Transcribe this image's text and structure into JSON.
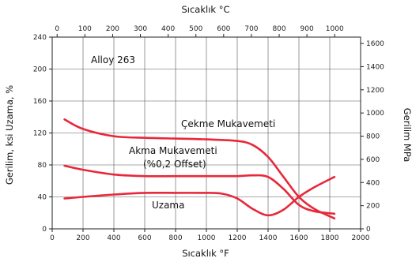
{
  "chart_data": {
    "type": "line",
    "x_axis_bottom": {
      "label": "Sıcaklık °F",
      "range": [
        0,
        2000
      ],
      "ticks": [
        0,
        200,
        400,
        600,
        800,
        1000,
        1200,
        1400,
        1600,
        1800,
        2000
      ]
    },
    "x_axis_top": {
      "label": "Sıcaklık °C",
      "ticks": [
        0,
        100,
        200,
        300,
        400,
        500,
        600,
        700,
        800,
        900,
        1000
      ]
    },
    "y_axis_left": {
      "label": "Gerilim, ksi  Uzama, %",
      "range": [
        0,
        240
      ],
      "ticks": [
        0,
        40,
        80,
        120,
        160,
        200,
        240
      ]
    },
    "y_axis_right": {
      "label": "Gerilim MPa",
      "range": [
        0,
        1655
      ],
      "ticks": [
        0,
        200,
        400,
        600,
        800,
        1000,
        1200,
        1400,
        1600
      ]
    },
    "grid": true,
    "color": "#e8283a",
    "annotations": {
      "alloy": "Alloy 263",
      "tensile": "Çekme Mukavemeti",
      "yield_line1": "Akma Mukavemeti",
      "yield_line2": "(%0,2 Offset)",
      "elongation": "Uzama"
    },
    "series": [
      {
        "name": "Çekme Mukavemeti",
        "x": [
          80,
          200,
          400,
          600,
          800,
          1000,
          1200,
          1300,
          1400,
          1500,
          1600,
          1700,
          1830
        ],
        "y": [
          137,
          125,
          116,
          114,
          113,
          112,
          110,
          105,
          90,
          65,
          40,
          25,
          13
        ]
      },
      {
        "name": "Akma Mukavemeti (%0,2 Offset)",
        "x": [
          80,
          200,
          400,
          600,
          800,
          1000,
          1200,
          1300,
          1400,
          1500,
          1600,
          1700,
          1830
        ],
        "y": [
          79,
          74,
          68,
          66,
          66,
          66,
          66,
          67,
          65,
          50,
          30,
          22,
          19
        ]
      },
      {
        "name": "Uzama",
        "x": [
          80,
          200,
          400,
          600,
          800,
          1000,
          1100,
          1200,
          1300,
          1400,
          1500,
          1600,
          1700,
          1830
        ],
        "y": [
          38,
          40,
          43,
          45,
          45,
          45,
          44,
          38,
          25,
          17,
          24,
          40,
          52,
          65
        ]
      }
    ]
  }
}
